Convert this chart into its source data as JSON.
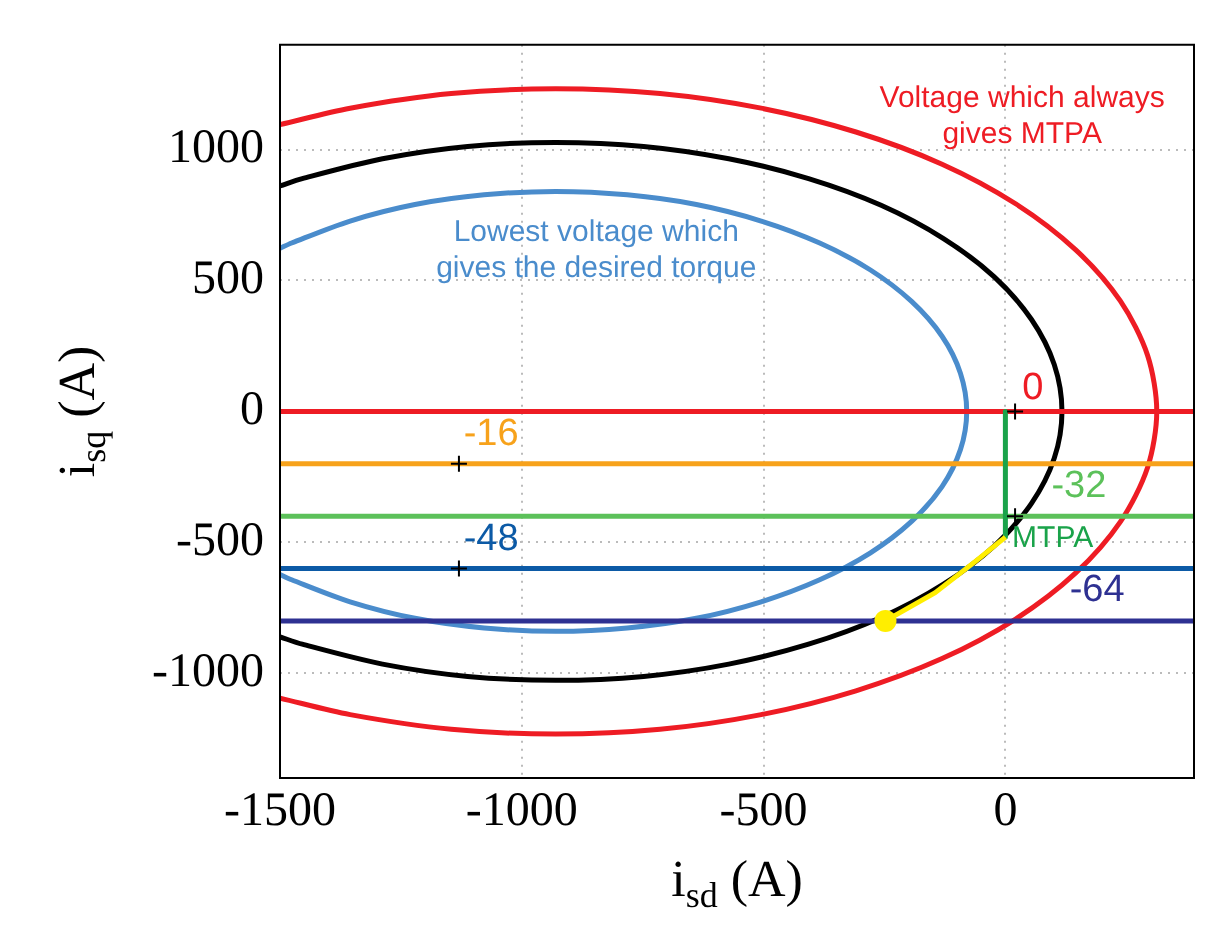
{
  "chart_data": {
    "type": "line",
    "xlabel": "i$_{sd}$ (A)",
    "ylabel": "i$_{sq}$ (A)",
    "xlim": [
      -1500,
      390
    ],
    "ylim": [
      -1400,
      1400
    ],
    "xticks": [
      -1500,
      -1000,
      -500,
      0
    ],
    "yticks": [
      -1000,
      -500,
      0,
      500,
      1000
    ],
    "grid": true,
    "legend": false,
    "series": [
      {
        "name": "Voltage which always\ngives MTPA",
        "color": "#ee1c24",
        "x": [
          -1500,
          -1355,
          -1146,
          -930,
          -714,
          -505,
          -309,
          -131,
          22,
          146,
          238,
          294,
          313,
          294,
          238,
          146,
          22,
          -131,
          -309,
          -505,
          -714,
          -930,
          -1146,
          -1355,
          -1500
        ],
        "values": [
          1095,
          1158,
          1214,
          1232,
          1214,
          1158,
          1067,
          944,
          792,
          616,
          421,
          214,
          0,
          -214,
          -421,
          -616,
          -792,
          -944,
          -1067,
          -1158,
          -1214,
          -1232,
          -1214,
          -1158,
          -1095
        ]
      },
      {
        "color": "#000000",
        "x": [
          -1500,
          -1454,
          -1288,
          -1112,
          -930,
          -748,
          -572,
          -407,
          -257,
          -128,
          -23,
          54,
          101,
          117,
          101,
          54,
          -23,
          -128,
          -257,
          -407,
          -572,
          -748,
          -930,
          -1112,
          -1288,
          -1454,
          -1500
        ],
        "values": [
          861,
          889,
          965,
          1012,
          1027,
          1012,
          965,
          889,
          787,
          660,
          514,
          351,
          179,
          0,
          -179,
          -351,
          -514,
          -660,
          -787,
          -889,
          -965,
          -1012,
          -1027,
          -1012,
          -965,
          -889,
          -861
        ]
      },
      {
        "name": "Lowest voltage which\ngives the desired torque",
        "color": "#4a8ccc",
        "x": [
          -1500,
          -1476,
          -1355,
          -1221,
          -1078,
          -930,
          -782,
          -639,
          -505,
          -384,
          -279,
          -194,
          -131,
          -93,
          -80,
          -93,
          -131,
          -194,
          -279,
          -384,
          -505,
          -639,
          -782,
          -930,
          -1078,
          -1221,
          -1355,
          -1476,
          -1500
        ],
        "values": [
          623,
          643,
          727,
          790,
          827,
          840,
          827,
          790,
          727,
          643,
          540,
          420,
          287,
          146,
          0,
          -146,
          -287,
          -420,
          -540,
          -643,
          -727,
          -790,
          -827,
          -840,
          -827,
          -790,
          -727,
          -643,
          -623
        ]
      },
      {
        "name": "0",
        "color": "#ee1c24",
        "x": [
          -1500,
          390
        ],
        "values": [
          0,
          0
        ]
      },
      {
        "name": "-16",
        "color": "#f7a21b",
        "x": [
          -1500,
          390
        ],
        "values": [
          -200,
          -200
        ]
      },
      {
        "name": "-32",
        "color": "#5cc15a",
        "x": [
          -1500,
          390
        ],
        "values": [
          -400,
          -400
        ]
      },
      {
        "name": "-48",
        "color": "#0c5aa6",
        "x": [
          -1500,
          390
        ],
        "values": [
          -600,
          -600
        ]
      },
      {
        "name": "-64",
        "color": "#2e3192",
        "x": [
          -1500,
          390
        ],
        "values": [
          -800,
          -800
        ]
      },
      {
        "name": "MTPA",
        "color": "#1aa34a",
        "x": [
          0,
          0
        ],
        "values": [
          0,
          -480
        ]
      },
      {
        "color": "#ffee00",
        "x": [
          0,
          -60,
          -145,
          -248
        ],
        "values": [
          -480,
          -570,
          -692,
          -800
        ]
      },
      {
        "type": "scatter",
        "marker": "circle",
        "color": "#ffee00",
        "x": [
          -248
        ],
        "values": [
          -800
        ]
      },
      {
        "type": "scatter",
        "marker": "cross",
        "color": "#000000",
        "x": [
          -1130,
          -1130,
          20,
          20
        ],
        "values": [
          -200,
          -600,
          0,
          -400
        ]
      }
    ]
  }
}
